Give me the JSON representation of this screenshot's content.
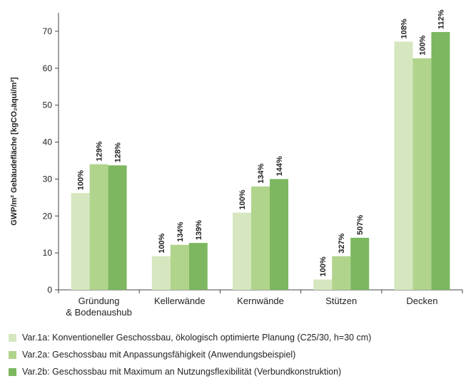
{
  "chart_data": {
    "type": "bar",
    "title": "",
    "xlabel": "",
    "ylabel": "GWP/m² Gebäudefläche [kgCO₂äqui/m²]",
    "ylim": [
      0,
      75
    ],
    "yticks": [
      0,
      10,
      20,
      30,
      40,
      50,
      60,
      70
    ],
    "grid": false,
    "legend_position": "bottom",
    "categories": [
      [
        "Gründung",
        "& Bodenaushub"
      ],
      [
        "Kellerwände"
      ],
      [
        "Kernwände"
      ],
      [
        "Stützen"
      ],
      [
        "Decken"
      ]
    ],
    "series": [
      {
        "name": "Var.1a: Konventioneller Geschossbau, ökologisch optimierte Planung (C25/30, h=30 cm)",
        "color": "#d6e7c0",
        "values": [
          26.2,
          9.1,
          20.9,
          2.8,
          67.2
        ],
        "labels": [
          "100%",
          "100%",
          "100%",
          "100%",
          "108%"
        ]
      },
      {
        "name": "Var.2a: Geschossbau mit Anpassungsfähigkeit (Anwendungsbeispiel)",
        "color": "#b1d48c",
        "values": [
          34.0,
          12.2,
          28.0,
          9.1,
          62.7
        ],
        "labels": [
          "129%",
          "134%",
          "134%",
          "327%",
          "100%"
        ]
      },
      {
        "name": "Var.2b: Geschossbau mit Maximum an Nutzungsflexibilität (Verbundkonstruktion)",
        "color": "#7db760",
        "values": [
          33.7,
          12.7,
          30.0,
          14.1,
          69.8
        ],
        "labels": [
          "128%",
          "139%",
          "144%",
          "507%",
          "112%"
        ]
      }
    ]
  }
}
